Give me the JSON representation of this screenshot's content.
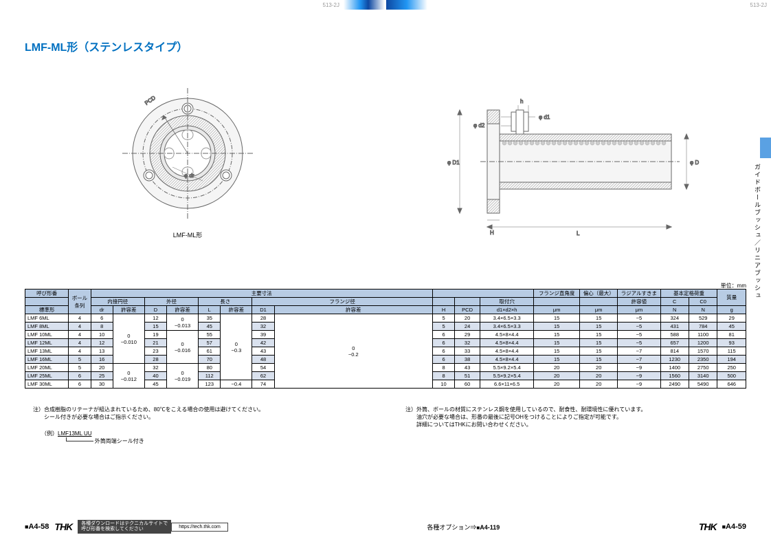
{
  "top": {
    "left_code": "513-2J",
    "right_code": "513-2J"
  },
  "title": "LMF-ML形（ステンレスタイプ）",
  "figure1": {
    "caption": "LMF-ML形",
    "labels": {
      "pcd": "PCD",
      "dr": "φ dr"
    },
    "colors": {
      "stroke": "#666",
      "ball": "#888",
      "fill_outer": "#f0f0f0",
      "fill_inner": "#ddd"
    }
  },
  "figure2": {
    "labels": {
      "d2": "φ d2",
      "d1": "φ d1",
      "D1_big": "φ D1",
      "D": "φ D",
      "h": "h",
      "H": "H",
      "L": "L"
    },
    "colors": {
      "stroke": "#666",
      "hatch": "#888",
      "ball": "#aaa"
    }
  },
  "unit_text": "単位：mm",
  "sidebar_text": "ガイドボールブッシュ／リニアブッシュ",
  "table": {
    "hdr_group_main": "主要寸法",
    "hdr_model": "呼び形番",
    "hdr_std": "標準形",
    "hdr_ball": "ボール\n条列",
    "hdr_id": "内接円径",
    "hdr_od": "外径",
    "hdr_len": "長さ",
    "hdr_flange": "フランジ径",
    "hdr_dr": "dr",
    "hdr_tol": "許容差",
    "hdr_D": "D",
    "hdr_L": "L",
    "hdr_D1": "D1",
    "hdr_H": "H",
    "hdr_PCD": "PCD",
    "hdr_mount": "取付穴",
    "hdr_mount_sub": "d1×d2×h",
    "hdr_perp": "フランジ直角度",
    "hdr_ecc": "偏心（最大）",
    "hdr_radial": "ラジアルすきま",
    "hdr_radial_sub": "許容値",
    "hdr_rated": "基本定格荷重",
    "hdr_C": "C",
    "hdr_C0": "C0",
    "hdr_mass": "質量",
    "hdr_um": "μm",
    "hdr_N": "N",
    "hdr_g": "g",
    "tol_dr_a": "0\n−0.010",
    "tol_dr_b": "0\n−0.012",
    "tol_D_a": "0",
    "tol_D_b": "−0.013",
    "tol_D_c": "0\n−0.016",
    "tol_D_d": "0\n−0.019",
    "tol_L_a": "0\n−0.3",
    "tol_L_b": "−0.4",
    "tol_D1_a": "0\n−0.2",
    "rows": [
      {
        "m": "LMF 6ML",
        "b": "4",
        "dr": "6",
        "D": "12",
        "tD": "0",
        "L": "35",
        "D1": "28",
        "H": "5",
        "P": "20",
        "mh": "3.4×6.5×3.3",
        "pe": "15",
        "ec": "15",
        "ra": "−5",
        "C": "324",
        "C0": "529",
        "g": "29"
      },
      {
        "m": "LMF 8ML",
        "b": "4",
        "dr": "8",
        "D": "15",
        "tD": "−0.013",
        "L": "45",
        "D1": "32",
        "H": "5",
        "P": "24",
        "mh": "3.4×6.5×3.3",
        "pe": "15",
        "ec": "15",
        "ra": "−5",
        "C": "431",
        "C0": "784",
        "g": "45"
      },
      {
        "m": "LMF 10ML",
        "b": "4",
        "dr": "10",
        "D": "19",
        "tD": "",
        "L": "55",
        "D1": "39",
        "H": "6",
        "P": "29",
        "mh": "4.5×8×4.4",
        "pe": "15",
        "ec": "15",
        "ra": "−5",
        "C": "588",
        "C0": "1100",
        "g": "81"
      },
      {
        "m": "LMF 12ML",
        "b": "4",
        "dr": "12",
        "D": "21",
        "tD": "0",
        "L": "57",
        "D1": "42",
        "H": "6",
        "P": "32",
        "mh": "4.5×8×4.4",
        "pe": "15",
        "ec": "15",
        "ra": "−5",
        "C": "657",
        "C0": "1200",
        "g": "93"
      },
      {
        "m": "LMF 13ML",
        "b": "4",
        "dr": "13",
        "D": "23",
        "tD": "−0.016",
        "L": "61",
        "D1": "43",
        "H": "6",
        "P": "33",
        "mh": "4.5×8×4.4",
        "pe": "15",
        "ec": "15",
        "ra": "−7",
        "C": "814",
        "C0": "1570",
        "g": "115"
      },
      {
        "m": "LMF 16ML",
        "b": "5",
        "dr": "16",
        "D": "28",
        "tD": "",
        "L": "70",
        "D1": "48",
        "H": "6",
        "P": "38",
        "mh": "4.5×8×4.4",
        "pe": "15",
        "ec": "15",
        "ra": "−7",
        "C": "1230",
        "C0": "2350",
        "g": "194"
      },
      {
        "m": "LMF 20ML",
        "b": "5",
        "dr": "20",
        "D": "32",
        "tD": "",
        "L": "80",
        "D1": "54",
        "H": "8",
        "P": "43",
        "mh": "5.5×9.2×5.4",
        "pe": "20",
        "ec": "20",
        "ra": "−9",
        "C": "1400",
        "C0": "2750",
        "g": "250"
      },
      {
        "m": "LMF 25ML",
        "b": "6",
        "dr": "25",
        "D": "40",
        "tD": "0",
        "L": "112",
        "tL": "0",
        "D1": "62",
        "H": "8",
        "P": "51",
        "mh": "5.5×9.2×5.4",
        "pe": "20",
        "ec": "20",
        "ra": "−9",
        "C": "1560",
        "C0": "3140",
        "g": "500"
      },
      {
        "m": "LMF 30ML",
        "b": "6",
        "dr": "30",
        "D": "45",
        "tD": "−0.019",
        "L": "123",
        "tL": "−0.4",
        "D1": "74",
        "H": "10",
        "P": "60",
        "mh": "6.6×11×6.5",
        "pe": "20",
        "ec": "20",
        "ra": "−9",
        "C": "2490",
        "C0": "5490",
        "g": "646"
      }
    ]
  },
  "notes": {
    "left": [
      "注）合成樹脂のリテーナが組込まれているため、80℃をこえる場合の使用は避けてください。",
      "シール付きが必要な場合はご指示ください。"
    ],
    "right": [
      "注）外筒、ボールの材質にステンレス鋼を使用しているので、耐食性、耐環境性に優れています。",
      "油穴が必要な場合は、形番の最後に記号OHをつけることによりご指定が可能です。",
      "詳細についてはTHKにお問い合わせください。"
    ],
    "example_prefix": "（例）",
    "example_model": "LMF13ML UU",
    "example_desc": "外筒両端シール付き"
  },
  "footer": {
    "page_left": "A4-58",
    "page_right": "A4-59",
    "logo": "THK",
    "dl_text": "各種ダウンロードはテクニカルサイトで\n呼び形番を検索してください",
    "dl_url": "https://tech.thk.com",
    "option_text": "各種オプション⇒",
    "option_ref": "A4-119"
  },
  "page_box": "■"
}
